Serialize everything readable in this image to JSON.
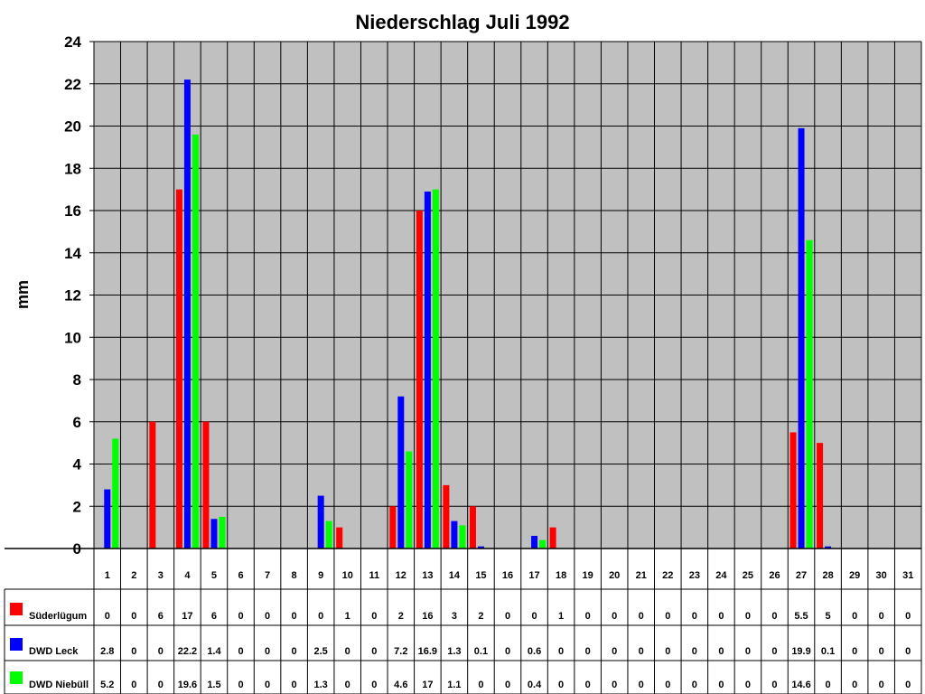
{
  "chart_data": {
    "type": "bar",
    "title": "Niederschlag Juli 1992",
    "ylabel": "mm",
    "xlabel": "",
    "ylim": [
      0,
      24
    ],
    "yticks": [
      0,
      2,
      4,
      6,
      8,
      10,
      12,
      14,
      16,
      18,
      20,
      22,
      24
    ],
    "grid": true,
    "legend": "data-table-below",
    "categories": [
      "1",
      "2",
      "3",
      "4",
      "5",
      "6",
      "7",
      "8",
      "9",
      "10",
      "11",
      "12",
      "13",
      "14",
      "15",
      "16",
      "17",
      "18",
      "19",
      "20",
      "21",
      "22",
      "23",
      "24",
      "25",
      "26",
      "27",
      "28",
      "29",
      "30",
      "31"
    ],
    "series": [
      {
        "name": "Süderlügum",
        "color": "#ff0000",
        "values": [
          0,
          0,
          6,
          17,
          6,
          0,
          0,
          0,
          0,
          1,
          0,
          2,
          16,
          3,
          2,
          0,
          0,
          1,
          0,
          0,
          0,
          0,
          0,
          0,
          0,
          0,
          5.5,
          5,
          0,
          0,
          0
        ]
      },
      {
        "name": "DWD Leck",
        "color": "#0000ff",
        "values": [
          2.8,
          0,
          0,
          22.2,
          1.4,
          0,
          0,
          0,
          2.5,
          0,
          0,
          7.2,
          16.9,
          1.3,
          0.1,
          0,
          0.6,
          0,
          0,
          0,
          0,
          0,
          0,
          0,
          0,
          0,
          19.9,
          0.1,
          0,
          0,
          0
        ]
      },
      {
        "name": "DWD Niebüll",
        "color": "#00ff00",
        "values": [
          5.2,
          0,
          0,
          19.6,
          1.5,
          0,
          0,
          0,
          1.3,
          0,
          0,
          4.6,
          17,
          1.1,
          0,
          0,
          0.4,
          0,
          0,
          0,
          0,
          0,
          0,
          0,
          0,
          0,
          14.6,
          0,
          0,
          0,
          0
        ]
      }
    ]
  },
  "colors": {
    "plot_background": "#c0c0c0",
    "gridline": "#000000"
  }
}
